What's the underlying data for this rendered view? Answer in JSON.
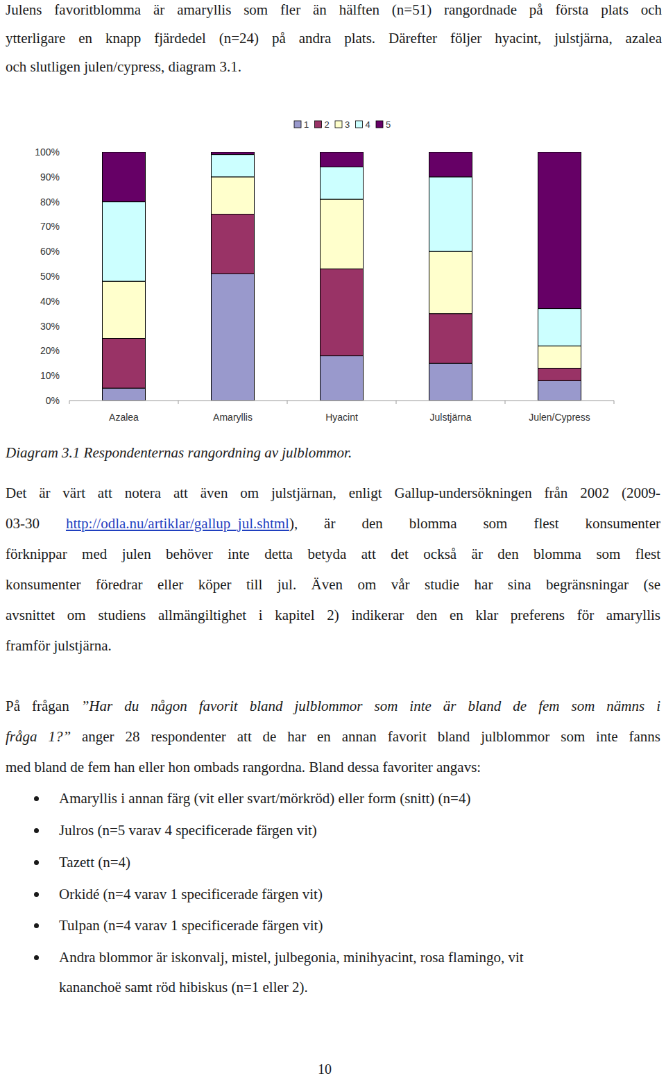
{
  "intro": {
    "lines": [
      [
        {
          "text": "Julens favoritblomma är amaryllis som fler än hälften (n=51) rangordnade på första plats och"
        }
      ],
      [
        {
          "text": "ytterligare en knapp fjärdedel (n=24) på andra plats. Därefter följer hyacint, julstjärna, azalea"
        }
      ],
      [
        {
          "text": "och slutligen julen/cypress, diagram 3.1."
        }
      ]
    ]
  },
  "chart_data": {
    "type": "bar",
    "stacked": true,
    "grid": false,
    "legend": "top",
    "categories": [
      "Azalea",
      "Amaryllis",
      "Hyacint",
      "Julstjärna",
      "Julen/Cypress"
    ],
    "series": [
      {
        "name": "1",
        "color": "#9999cc",
        "values": [
          5,
          51,
          18,
          15,
          8
        ]
      },
      {
        "name": "2",
        "color": "#993366",
        "values": [
          20,
          24,
          35,
          20,
          5
        ]
      },
      {
        "name": "3",
        "color": "#ffffcc",
        "values": [
          23,
          15,
          28,
          25,
          9
        ]
      },
      {
        "name": "4",
        "color": "#ccffff",
        "values": [
          32,
          9,
          13,
          30,
          15
        ]
      },
      {
        "name": "5",
        "color": "#660066",
        "values": [
          20,
          1,
          6,
          10,
          63
        ]
      }
    ],
    "ylim": [
      0,
      100
    ],
    "yticks": [
      {
        "value": 0,
        "label": "0%"
      },
      {
        "value": 10,
        "label": "10%"
      },
      {
        "value": 20,
        "label": "20%"
      },
      {
        "value": 30,
        "label": "30%"
      },
      {
        "value": 40,
        "label": "40%"
      },
      {
        "value": 50,
        "label": "50%"
      },
      {
        "value": 60,
        "label": "60%"
      },
      {
        "value": 70,
        "label": "70%"
      },
      {
        "value": 80,
        "label": "80%"
      },
      {
        "value": 90,
        "label": "90%"
      },
      {
        "value": 100,
        "label": "100%"
      }
    ]
  },
  "caption": "Diagram 3.1 Respondenternas rangordning av julblommor.",
  "paragraph2": {
    "lines": [
      [
        {
          "text": "Det är värt att notera att även om julstjärnan, enligt Gallup-undersökningen från 2002 (2009-"
        }
      ],
      [
        {
          "text": "03-30 "
        },
        {
          "text": "http://odla.nu/artiklar/gallup_jul.shtml",
          "link": true
        },
        {
          "text": "), är den blomma som flest konsumenter"
        }
      ],
      [
        {
          "text": "förknippar med julen behöver inte detta betyda att det också är den blomma som flest"
        }
      ],
      [
        {
          "text": "konsumenter föredrar eller köper till jul. Även om vår studie har sina begränsningar (se"
        }
      ],
      [
        {
          "text": "avsnittet om studiens allmängiltighet i kapitel 2) indikerar den en klar preferens för amaryllis"
        }
      ],
      [
        {
          "text": "framför julstjärna."
        }
      ]
    ]
  },
  "paragraph3": {
    "lines": [
      [
        {
          "text": "På frågan "
        },
        {
          "text": "”Har du någon favorit bland julblommor som inte är bland de fem som nämns i",
          "italic": true
        }
      ],
      [
        {
          "text": "fråga 1?”",
          "italic": true
        },
        {
          "text": " anger 28 respondenter att de har en annan favorit bland julblommor som inte fanns"
        }
      ],
      [
        {
          "text": "med bland de fem han eller hon ombads rangordna. Bland dessa favoriter angavs:"
        }
      ]
    ]
  },
  "bullets": [
    [
      "Amaryllis i annan färg (vit eller svart/mörkröd) eller form (snitt) (n=4)"
    ],
    [
      "Julros (n=5 varav 4 specificerade färgen vit)"
    ],
    [
      "Tazett (n=4)"
    ],
    [
      "Orkidé (n=4 varav 1 specificerade färgen vit)"
    ],
    [
      "Tulpan (n=4 varav 1 specificerade färgen vit)"
    ],
    [
      "Andra blommor är iskonvalj, mistel, julbegonia, minihyacint, rosa flamingo, vit",
      "kananchoë samt röd hibiskus (n=1 eller 2)."
    ]
  ],
  "page_number": "10"
}
